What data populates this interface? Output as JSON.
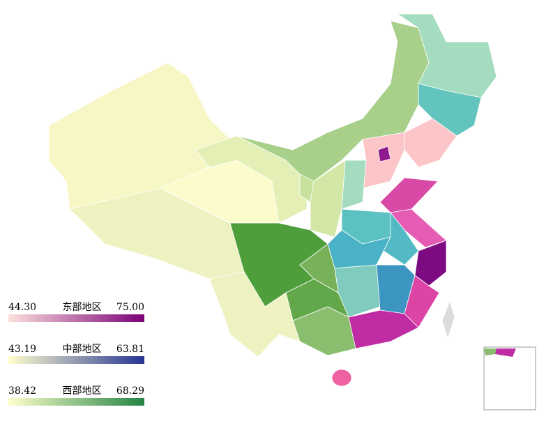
{
  "legends": [
    {
      "title": "东部地区",
      "min": {
        "value": 44.3,
        "label": "44.30"
      },
      "max": {
        "value": 75,
        "label": "75.00"
      },
      "colors": [
        "#fde0dd",
        "#7a0177"
      ]
    },
    {
      "title": "中部地区",
      "min": {
        "value": 43.19,
        "label": "43.19"
      },
      "max": {
        "value": 63.81,
        "label": "63.81"
      },
      "colors": [
        "#ffffcc",
        "#253494"
      ]
    },
    {
      "title": "西部地区",
      "min": {
        "value": 38.42,
        "label": "38.42"
      },
      "max": {
        "value": 68.29,
        "label": "68.29"
      },
      "colors": [
        "#ffffcc",
        "#238443"
      ]
    }
  ]
}
